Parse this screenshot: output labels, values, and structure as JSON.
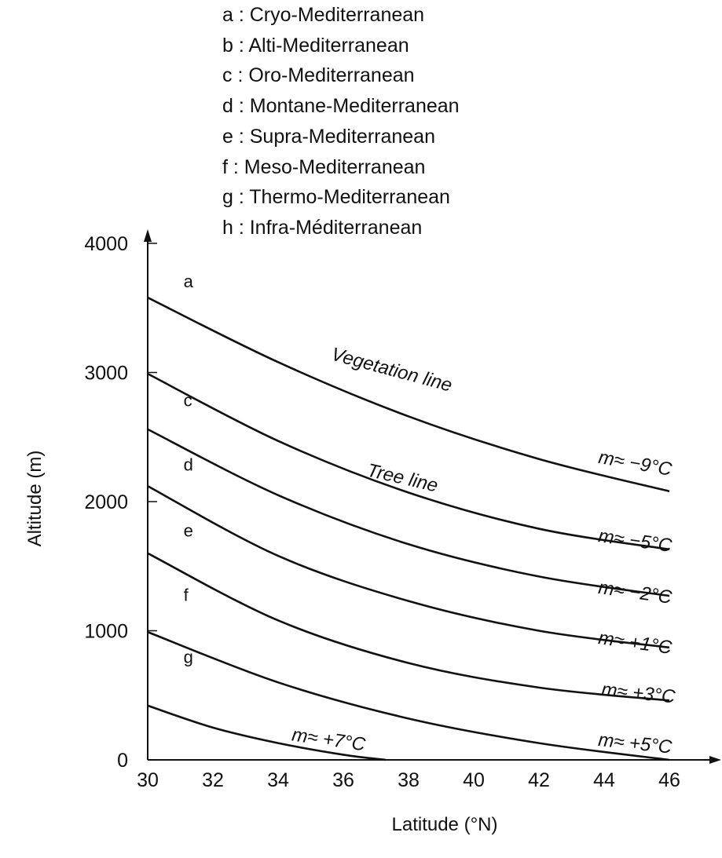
{
  "chart_data": {
    "type": "line",
    "xlabel": "Latitude (°N)",
    "ylabel": "Altitude (m)",
    "xlim": [
      30,
      46
    ],
    "ylim": [
      0,
      4000
    ],
    "x_ticks": [
      30,
      32,
      34,
      36,
      38,
      40,
      42,
      44,
      46
    ],
    "y_ticks": [
      0,
      1000,
      2000,
      3000,
      4000
    ],
    "grid": false,
    "legend": [
      "a : Cryo-Mediterranean",
      "b : Alti-Mediterranean",
      "c : Oro-Mediterranean",
      "d : Montane-Mediterranean",
      "e : Supra-Mediterranean",
      "f : Meso-Mediterranean",
      "g : Thermo-Mediterranean",
      "h : Infra-Méditerranean"
    ],
    "series": [
      {
        "x": [
          30,
          34,
          38,
          42,
          46
        ],
        "y": [
          3580,
          3080,
          2660,
          2330,
          2080
        ]
      },
      {
        "x": [
          30,
          34,
          38,
          42,
          46
        ],
        "y": [
          2990,
          2470,
          2070,
          1790,
          1630
        ]
      },
      {
        "x": [
          30,
          34,
          38,
          42,
          46
        ],
        "y": [
          2560,
          2050,
          1670,
          1420,
          1270
        ]
      },
      {
        "x": [
          30,
          34,
          38,
          42,
          46
        ],
        "y": [
          2120,
          1580,
          1230,
          1000,
          870
        ]
      },
      {
        "x": [
          30,
          34,
          38,
          42,
          46
        ],
        "y": [
          1600,
          1080,
          750,
          560,
          460
        ]
      },
      {
        "x": [
          30,
          34,
          38,
          42,
          46
        ],
        "y": [
          990,
          600,
          320,
          130,
          0
        ]
      },
      {
        "x": [
          30,
          32,
          34,
          36,
          37.3
        ],
        "y": [
          420,
          250,
          130,
          40,
          0
        ]
      }
    ],
    "annotations": [
      {
        "text": "a",
        "x": 31.1,
        "y": 3660,
        "style": "letter"
      },
      {
        "text": "c",
        "x": 31.1,
        "y": 2740,
        "style": "letter"
      },
      {
        "text": "d",
        "x": 31.1,
        "y": 2240,
        "style": "letter"
      },
      {
        "text": "e",
        "x": 31.1,
        "y": 1730,
        "style": "letter"
      },
      {
        "text": "f",
        "x": 31.1,
        "y": 1230,
        "style": "letter"
      },
      {
        "text": "g",
        "x": 31.1,
        "y": 750,
        "style": "letter"
      },
      {
        "text": "Vegetation line",
        "x": 35.6,
        "y": 3100,
        "angle": 15
      },
      {
        "text": "Tree line",
        "x": 36.7,
        "y": 2200,
        "angle": 13
      },
      {
        "text": "m≈ −9°C",
        "x": 43.8,
        "y": 2300,
        "angle": 10
      },
      {
        "text": "m≈ −5°C",
        "x": 43.8,
        "y": 1690,
        "angle": 8
      },
      {
        "text": "m≈ −2°C",
        "x": 43.8,
        "y": 1290,
        "angle": 8
      },
      {
        "text": "m≈ +1°C",
        "x": 43.8,
        "y": 900,
        "angle": 8
      },
      {
        "text": "m≈ +3°C",
        "x": 43.9,
        "y": 500,
        "angle": 6
      },
      {
        "text": "m≈ +7°C",
        "x": 34.4,
        "y": 150,
        "angle": 8
      },
      {
        "text": "m≈ +5°C",
        "x": 43.8,
        "y": 110,
        "angle": 6
      }
    ]
  }
}
